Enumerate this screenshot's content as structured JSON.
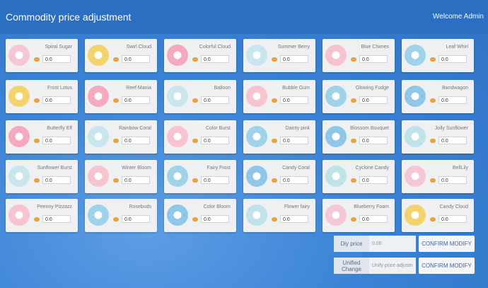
{
  "header": {
    "title": "Commodity price adjustment",
    "welcome": "Welcome Admin"
  },
  "cards": [
    {
      "name": "Spiral Sugar",
      "price": "0.0"
    },
    {
      "name": "Swirl Cloud",
      "price": "0.0"
    },
    {
      "name": "Colorful Cloud",
      "price": "0.0"
    },
    {
      "name": "Summer Berry",
      "price": "0.0"
    },
    {
      "name": "Blue Chimes",
      "price": "0.0"
    },
    {
      "name": "Leaf Whirl",
      "price": "0.0"
    },
    {
      "name": "Frost Lotus",
      "price": "0.0"
    },
    {
      "name": "Reef Mania",
      "price": "0.0"
    },
    {
      "name": "Balloon",
      "price": "0.0"
    },
    {
      "name": "Bubble Gum",
      "price": "0.0"
    },
    {
      "name": "Glowing Fudge",
      "price": "0.0"
    },
    {
      "name": "Bandwagon",
      "price": "0.0"
    },
    {
      "name": "Butterfly Elf",
      "price": "0.0"
    },
    {
      "name": "Rainbow Coral",
      "price": "0.0"
    },
    {
      "name": "Color Burst",
      "price": "0.0"
    },
    {
      "name": "Dainty pink",
      "price": "0.0"
    },
    {
      "name": "Blossom Bouquet",
      "price": "0.0"
    },
    {
      "name": "Jolly Sunflower",
      "price": "0.0"
    },
    {
      "name": "Sunflower Burst",
      "price": "0.0"
    },
    {
      "name": "Winter Bloom",
      "price": "0.0"
    },
    {
      "name": "Fairy Frost",
      "price": "0.0"
    },
    {
      "name": "Candy Coral",
      "price": "0.0"
    },
    {
      "name": "Cyclone Candy",
      "price": "0.0"
    },
    {
      "name": "BellLily",
      "price": "0.0"
    },
    {
      "name": "Peeony Pizzazz",
      "price": "0.0"
    },
    {
      "name": "Rosebuds",
      "price": "0.0"
    },
    {
      "name": "Color Bloom",
      "price": "0.0"
    },
    {
      "name": "Flower fairy",
      "price": "0.0"
    },
    {
      "name": "Blueberry Foam",
      "price": "0.0"
    },
    {
      "name": "Candy Cloud",
      "price": "0.0"
    }
  ],
  "controls": {
    "diy": {
      "label": "Diy price",
      "value": "0.00",
      "button": "CONFIRM MODIFY"
    },
    "unified": {
      "label": "Unified Change",
      "placeholder": "Unify price adjusm",
      "button": "CONFIRM MODIFY"
    }
  }
}
